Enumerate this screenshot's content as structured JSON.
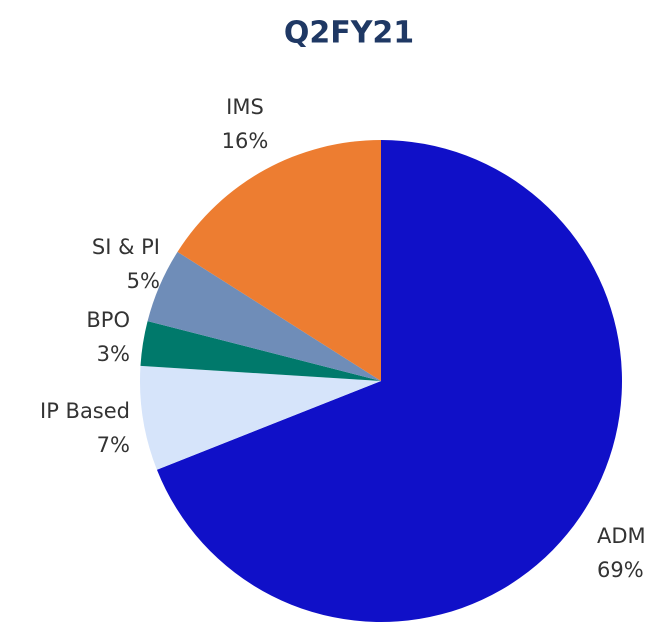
{
  "chart_data": {
    "type": "pie",
    "title": "Q2FY21",
    "categories": [
      "ADM",
      "IP Based",
      "BPO",
      "SI & PI",
      "IMS"
    ],
    "values": [
      69,
      7,
      3,
      5,
      16
    ],
    "value_labels": [
      "69%",
      "7%",
      "3%",
      "5%",
      "16%"
    ],
    "colors": [
      "#1010c8",
      "#d6e4fa",
      "#00796b",
      "#6f8db8",
      "#ed7d31"
    ]
  }
}
